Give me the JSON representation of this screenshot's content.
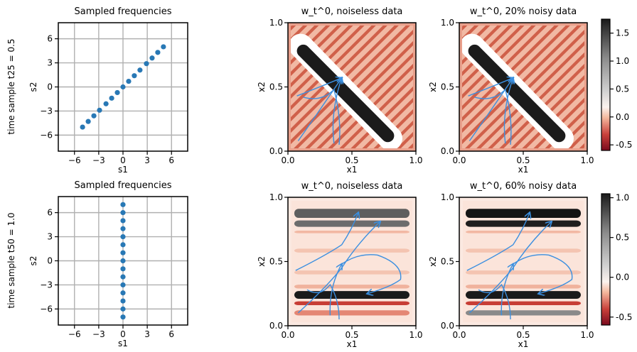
{
  "chart_data": [
    {
      "id": "freq-top",
      "type": "scatter",
      "title": "Sampled frequencies",
      "row_label": "time sample  t25 = 0.5",
      "xlabel": "s1",
      "ylabel": "s2",
      "xticks": [
        -6,
        -3,
        0,
        3,
        6
      ],
      "yticks": [
        -6,
        -3,
        0,
        3,
        6
      ],
      "xlim": [
        -8,
        8
      ],
      "ylim": [
        -8,
        8
      ],
      "grid": true,
      "color": "#2878b5",
      "x": [
        -5,
        -4.3,
        -3.6,
        -2.9,
        -2.1,
        -1.4,
        -0.7,
        0,
        0.7,
        1.4,
        2.1,
        2.9,
        3.6,
        4.3,
        5
      ],
      "y": [
        -5,
        -4.3,
        -3.6,
        -2.9,
        -2.1,
        -1.4,
        -0.7,
        0,
        0.7,
        1.4,
        2.1,
        2.9,
        3.6,
        4.3,
        5
      ]
    },
    {
      "id": "freq-bottom",
      "type": "scatter",
      "title": "Sampled frequencies",
      "row_label": "time sample  t50 = 1.0",
      "xlabel": "s1",
      "ylabel": "s2",
      "xticks": [
        -6,
        -3,
        0,
        3,
        6
      ],
      "yticks": [
        -6,
        -3,
        0,
        3,
        6
      ],
      "xlim": [
        -8,
        8
      ],
      "ylim": [
        -8,
        8
      ],
      "grid": true,
      "color": "#2878b5",
      "x": [
        0,
        0,
        0,
        0,
        0,
        0,
        0,
        0,
        0,
        0,
        0,
        0,
        0,
        0,
        0
      ],
      "y": [
        -7,
        -6,
        -5,
        -4,
        -3,
        -2,
        -1,
        0,
        1,
        2,
        3,
        4,
        5,
        6,
        7
      ]
    },
    {
      "id": "heat-top-left",
      "type": "heatmap",
      "title": "w_t^0, noiseless data",
      "xlabel": "x1",
      "ylabel": "x2",
      "xticks": [
        0.0,
        0.5,
        1.0
      ],
      "yticks": [
        0.0,
        0.5,
        1.0
      ],
      "xlim": [
        0,
        1
      ],
      "ylim": [
        0,
        1
      ],
      "pattern": "diagonal"
    },
    {
      "id": "heat-top-right",
      "type": "heatmap",
      "title": "w_t^0, 20% noisy data",
      "xlabel": "x1",
      "ylabel": "x2",
      "xticks": [
        0.0,
        0.5,
        1.0
      ],
      "yticks": [
        0.0,
        0.5,
        1.0
      ],
      "xlim": [
        0,
        1
      ],
      "ylim": [
        0,
        1
      ],
      "pattern": "diagonal"
    },
    {
      "id": "heat-bottom-left",
      "type": "heatmap",
      "title": "w_t^0, noiseless data",
      "xlabel": "x1",
      "ylabel": "x2",
      "xticks": [
        0.0,
        0.5,
        1.0
      ],
      "yticks": [
        0.0,
        0.5,
        1.0
      ],
      "xlim": [
        0,
        1
      ],
      "ylim": [
        0,
        1
      ],
      "pattern": "horizontal"
    },
    {
      "id": "heat-bottom-right",
      "type": "heatmap",
      "title": "w_t^0, 60% noisy data",
      "xlabel": "x1",
      "ylabel": "x2",
      "xticks": [
        0.0,
        0.5,
        1.0
      ],
      "yticks": [
        0.0,
        0.5,
        1.0
      ],
      "xlim": [
        0,
        1
      ],
      "ylim": [
        0,
        1
      ],
      "pattern": "horizontal"
    }
  ],
  "colorbars": [
    {
      "id": "cbar-top",
      "ticks": [
        1.5,
        1.0,
        0.5,
        0.0,
        -0.5
      ],
      "range": [
        -0.6,
        1.75
      ]
    },
    {
      "id": "cbar-bottom",
      "ticks": [
        1.0,
        0.5,
        0.0,
        -0.5
      ],
      "range": [
        -0.6,
        1.05
      ]
    }
  ],
  "colors": {
    "marker": "#2878b5",
    "flow": "#3b8fe0",
    "grid": "#b0b0b0"
  }
}
